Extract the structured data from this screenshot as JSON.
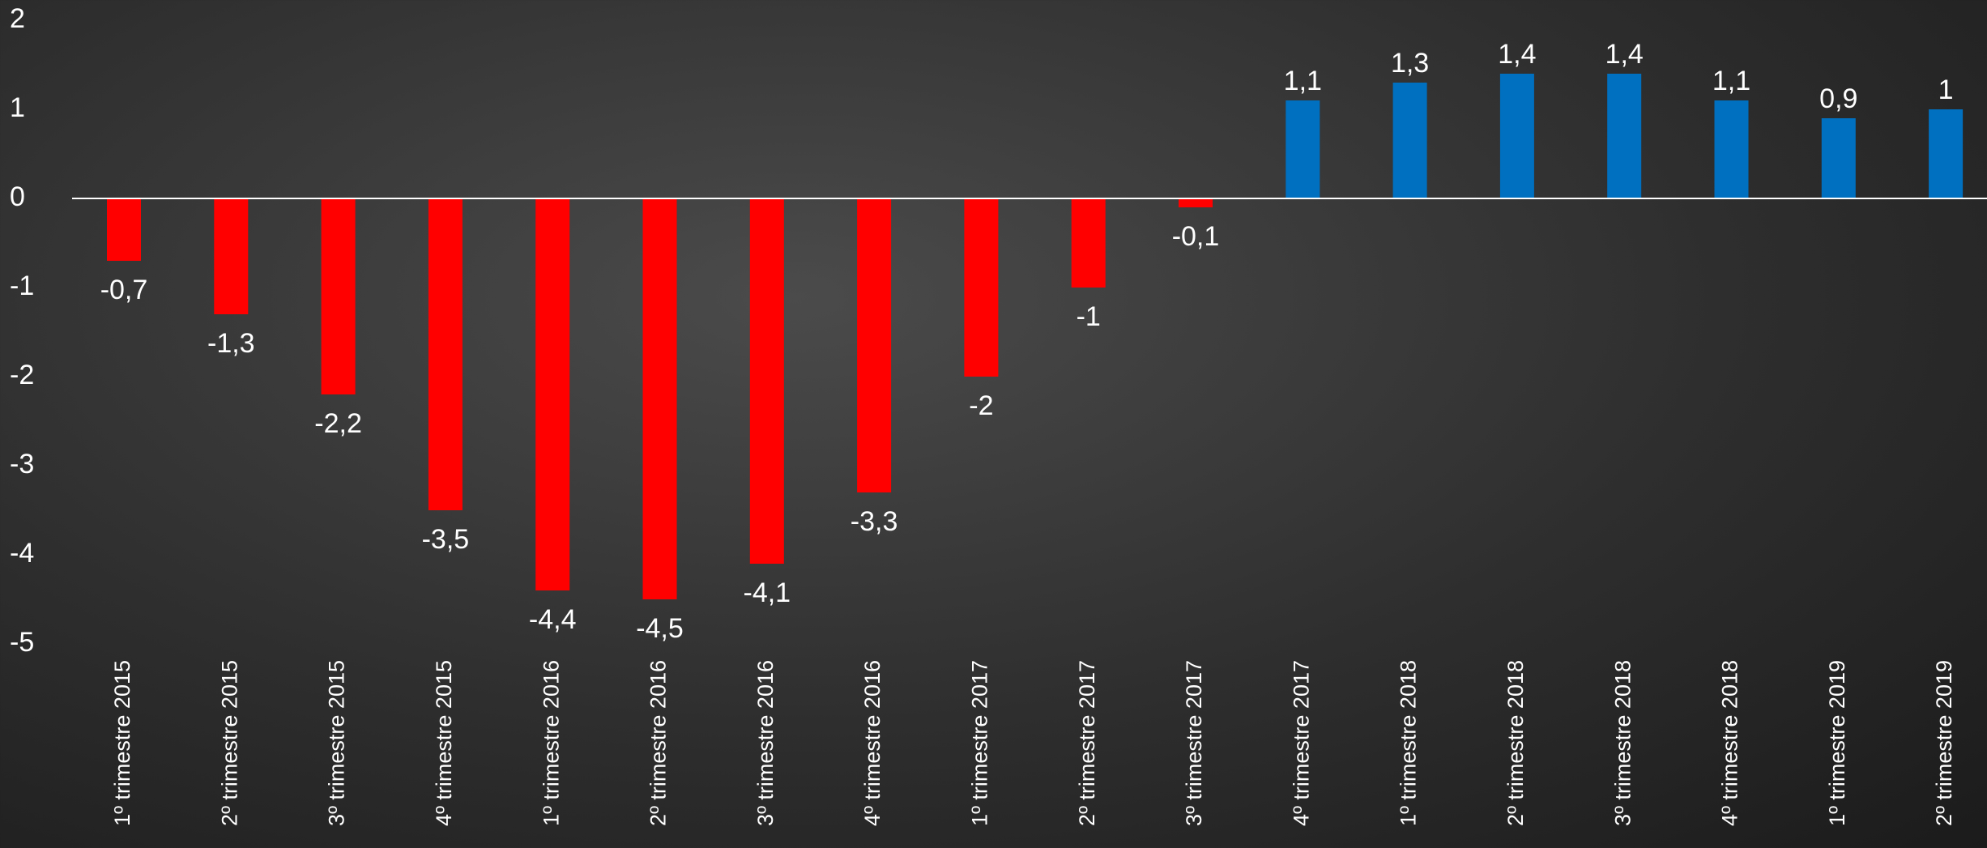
{
  "chart_data": {
    "type": "bar",
    "categories": [
      "1º trimestre 2015",
      "2º trimestre 2015",
      "3º trimestre 2015",
      "4º trimestre 2015",
      "1º trimestre 2016",
      "2º trimestre 2016",
      "3º trimestre 2016",
      "4º trimestre 2016",
      "1º trimestre 2017",
      "2º trimestre 2017",
      "3º trimestre 2017",
      "4º trimestre 2017",
      "1º trimestre 2018",
      "2º trimestre 2018",
      "3º trimestre 2018",
      "4º trimestre 2018",
      "1º trimestre 2019",
      "2º trimestre 2019"
    ],
    "values": [
      -0.7,
      -1.3,
      -2.2,
      -3.5,
      -4.4,
      -4.5,
      -4.1,
      -3.3,
      -2,
      -1,
      -0.1,
      1.1,
      1.3,
      1.4,
      1.4,
      1.1,
      0.9,
      1
    ],
    "value_labels": [
      "-0,7",
      "-1,3",
      "-2,2",
      "-3,5",
      "-4,4",
      "-4,5",
      "-4,1",
      "-3,3",
      "-2",
      "-1",
      "-0,1",
      "1,1",
      "1,3",
      "1,4",
      "1,4",
      "1,1",
      "0,9",
      "1"
    ],
    "colors": [
      "#ff0000",
      "#ff0000",
      "#ff0000",
      "#ff0000",
      "#ff0000",
      "#ff0000",
      "#ff0000",
      "#ff0000",
      "#ff0000",
      "#ff0000",
      "#ff0000",
      "#0070c0",
      "#0070c0",
      "#0070c0",
      "#0070c0",
      "#0070c0",
      "#0070c0",
      "#0070c0"
    ],
    "ylim": [
      -5,
      2
    ],
    "yticks": [
      2,
      1,
      0,
      -1,
      -2,
      -3,
      -4,
      -5
    ],
    "grid": false
  }
}
